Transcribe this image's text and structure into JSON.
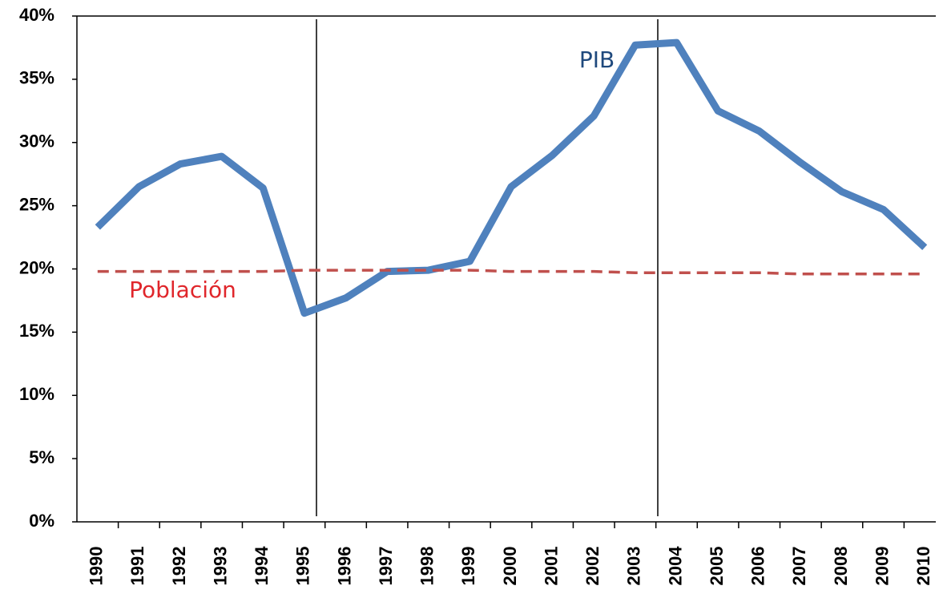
{
  "chart_data": {
    "type": "line",
    "categories": [
      "1990",
      "1991",
      "1992",
      "1993",
      "1994",
      "1995",
      "1996",
      "1997",
      "1998",
      "1999",
      "2000",
      "2001",
      "2002",
      "2003",
      "2004",
      "2005",
      "2006",
      "2007",
      "2008",
      "2009",
      "2010"
    ],
    "series": [
      {
        "name": "PIB",
        "color": "#4f81bd",
        "values": [
          23.3,
          26.5,
          28.3,
          28.9,
          26.4,
          16.5,
          17.7,
          19.8,
          19.9,
          20.6,
          26.5,
          29.0,
          32.1,
          37.7,
          37.9,
          32.5,
          30.9,
          28.4,
          26.1,
          24.7,
          21.7
        ]
      },
      {
        "name": "Población",
        "color": "#c0504d",
        "values": [
          19.8,
          19.8,
          19.8,
          19.8,
          19.8,
          19.9,
          19.9,
          19.9,
          19.9,
          19.9,
          19.8,
          19.8,
          19.8,
          19.7,
          19.7,
          19.7,
          19.7,
          19.6,
          19.6,
          19.6,
          19.6
        ]
      }
    ],
    "ylim": [
      0,
      40
    ],
    "yticks": [
      {
        "value": 0,
        "label": "0%"
      },
      {
        "value": 5,
        "label": "5%"
      },
      {
        "value": 10,
        "label": "10%"
      },
      {
        "value": 15,
        "label": "15%"
      },
      {
        "value": 20,
        "label": "20%"
      },
      {
        "value": 25,
        "label": "25%"
      },
      {
        "value": 30,
        "label": "30%"
      },
      {
        "value": 35,
        "label": "35%"
      },
      {
        "value": 40,
        "label": "40%"
      }
    ],
    "grid": false
  }
}
